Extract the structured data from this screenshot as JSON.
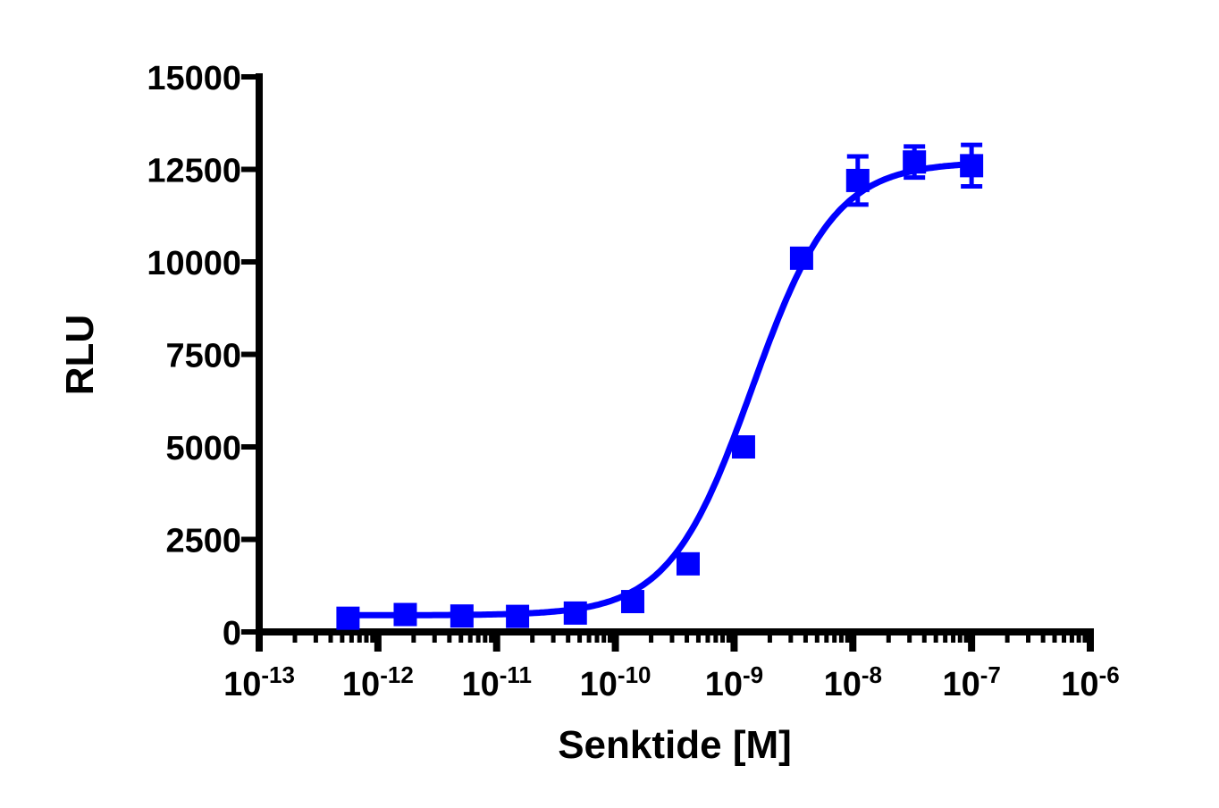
{
  "chart_data": {
    "type": "scatter",
    "title": "",
    "xlabel": "Senktide [M]",
    "ylabel": "RLU",
    "xscale": "log",
    "xlim": [
      1e-13,
      1e-06
    ],
    "ylim": [
      0,
      15000
    ],
    "grid": false,
    "legend": null,
    "x_tick_labels": [
      {
        "base": "10",
        "exp": "-13"
      },
      {
        "base": "10",
        "exp": "-12"
      },
      {
        "base": "10",
        "exp": "-11"
      },
      {
        "base": "10",
        "exp": "-10"
      },
      {
        "base": "10",
        "exp": "-9"
      },
      {
        "base": "10",
        "exp": "-8"
      },
      {
        "base": "10",
        "exp": "-7"
      },
      {
        "base": "10",
        "exp": "-6"
      }
    ],
    "y_tick_labels": [
      "0",
      "2500",
      "5000",
      "7500",
      "10000",
      "12500",
      "15000"
    ],
    "color": "#0000ff",
    "series": [
      {
        "name": "Senktide",
        "marker": "square",
        "x": [
          5.6e-13,
          1.7e-12,
          5.1e-12,
          1.5e-11,
          4.6e-11,
          1.4e-10,
          4.1e-10,
          1.2e-09,
          3.7e-09,
          1.1e-08,
          3.3e-08,
          1e-07
        ],
        "y": [
          370,
          470,
          430,
          420,
          510,
          820,
          1840,
          5000,
          10100,
          12200,
          12700,
          12600
        ],
        "error": [
          0,
          0,
          0,
          0,
          0,
          0,
          0,
          0,
          0,
          650,
          420,
          560
        ]
      }
    ],
    "fit": {
      "type": "sigmoidal dose-response",
      "bottom": 450,
      "top": 12700,
      "logEC50": -8.85,
      "hill": 1.25
    }
  }
}
